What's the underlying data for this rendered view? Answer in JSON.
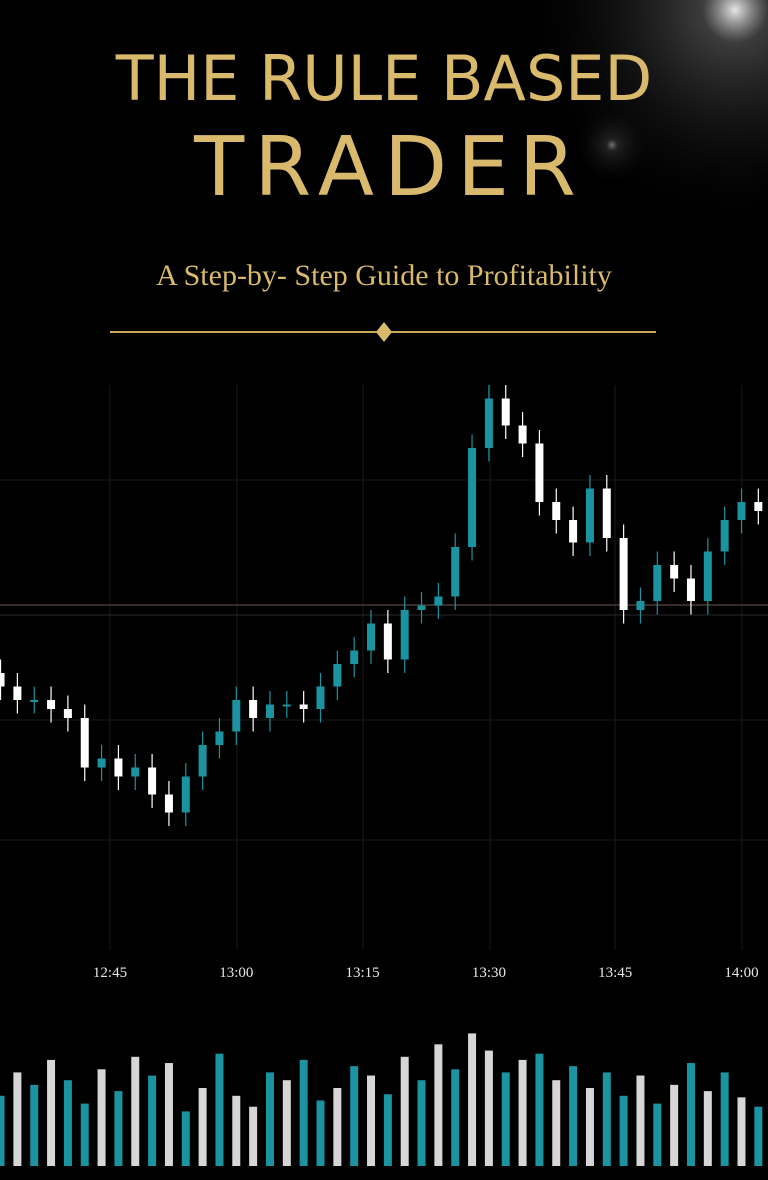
{
  "cover": {
    "title_1": "THE RULE BASED",
    "title_2": "TRADER",
    "subtitle": "A Step-by- Step Guide to Profitability"
  },
  "chart_data": [
    {
      "type": "candlestick",
      "up_color": "#1c93a0",
      "down_color": "#ffffff",
      "ylim": [
        0,
        100
      ],
      "x": [
        "12:32",
        "12:34",
        "12:36",
        "12:38",
        "12:40",
        "12:42",
        "12:44",
        "12:46",
        "12:48",
        "12:50",
        "12:52",
        "12:54",
        "12:56",
        "12:58",
        "13:00",
        "13:02",
        "13:04",
        "13:06",
        "13:08",
        "13:10",
        "13:12",
        "13:14",
        "13:16",
        "13:18",
        "13:20",
        "13:22",
        "13:24",
        "13:26",
        "13:28",
        "13:30",
        "13:32",
        "13:34",
        "13:36",
        "13:38",
        "13:40",
        "13:42",
        "13:44",
        "13:46",
        "13:48",
        "13:50",
        "13:52",
        "13:54",
        "13:56",
        "13:58",
        "14:00",
        "14:02"
      ],
      "xticks": [
        "12:45",
        "13:00",
        "13:15",
        "13:30",
        "13:45",
        "14:00"
      ],
      "open": [
        36,
        33,
        30,
        30,
        28,
        26,
        15,
        17,
        13,
        15,
        9,
        5,
        13,
        20,
        23,
        30,
        26,
        29,
        29,
        28,
        33,
        38,
        41,
        47,
        39,
        50,
        51,
        53,
        64,
        86,
        97,
        91,
        87,
        74,
        70,
        65,
        77,
        66,
        50,
        52,
        60,
        57,
        52,
        63,
        70,
        74
      ],
      "high": [
        39,
        36,
        33,
        33,
        31,
        29,
        20,
        20,
        18,
        18,
        12,
        16,
        23,
        26,
        33,
        33,
        32,
        32,
        32,
        36,
        41,
        44,
        50,
        50,
        53,
        54,
        56,
        67,
        89,
        100,
        100,
        94,
        90,
        77,
        73,
        80,
        80,
        69,
        55,
        63,
        63,
        60,
        66,
        73,
        77,
        77
      ],
      "low": [
        30,
        27,
        27,
        25,
        23,
        12,
        12,
        10,
        10,
        6,
        2,
        2,
        10,
        17,
        20,
        23,
        23,
        26,
        25,
        25,
        30,
        35,
        38,
        36,
        36,
        47,
        48,
        50,
        61,
        83,
        88,
        84,
        71,
        67,
        62,
        62,
        63,
        47,
        47,
        49,
        54,
        49,
        49,
        60,
        67,
        69
      ],
      "close": [
        33,
        30,
        30,
        28,
        26,
        15,
        17,
        13,
        15,
        9,
        5,
        13,
        20,
        23,
        30,
        26,
        29,
        29,
        28,
        33,
        38,
        41,
        47,
        39,
        50,
        51,
        53,
        64,
        86,
        97,
        91,
        87,
        74,
        70,
        65,
        77,
        66,
        50,
        52,
        60,
        57,
        52,
        63,
        70,
        74,
        72
      ]
    },
    {
      "type": "bar",
      "ylim": [
        0,
        100
      ],
      "values": [
        45,
        60,
        52,
        68,
        55,
        40,
        62,
        48,
        70,
        58,
        66,
        35,
        50,
        72,
        45,
        38,
        60,
        55,
        68,
        42,
        50,
        64,
        58,
        46,
        70,
        55,
        78,
        62,
        85,
        74,
        60,
        68,
        72,
        55,
        64,
        50,
        60,
        45,
        58,
        40,
        52,
        66,
        48,
        60,
        44,
        38
      ],
      "colors": [
        "#1c93a0",
        "#d6d6d6",
        "#1c93a0",
        "#d6d6d6",
        "#1c93a0",
        "#1c93a0",
        "#d6d6d6",
        "#1c93a0",
        "#d6d6d6",
        "#1c93a0",
        "#d6d6d6",
        "#1c93a0",
        "#d6d6d6",
        "#1c93a0",
        "#d6d6d6",
        "#d6d6d6",
        "#1c93a0",
        "#d6d6d6",
        "#1c93a0",
        "#1c93a0",
        "#d6d6d6",
        "#1c93a0",
        "#d6d6d6",
        "#1c93a0",
        "#d6d6d6",
        "#1c93a0",
        "#d6d6d6",
        "#1c93a0",
        "#d6d6d6",
        "#d6d6d6",
        "#1c93a0",
        "#d6d6d6",
        "#1c93a0",
        "#d6d6d6",
        "#1c93a0",
        "#d6d6d6",
        "#1c93a0",
        "#1c93a0",
        "#d6d6d6",
        "#1c93a0",
        "#d6d6d6",
        "#1c93a0",
        "#d6d6d6",
        "#1c93a0",
        "#d6d6d6",
        "#1c93a0"
      ]
    }
  ]
}
